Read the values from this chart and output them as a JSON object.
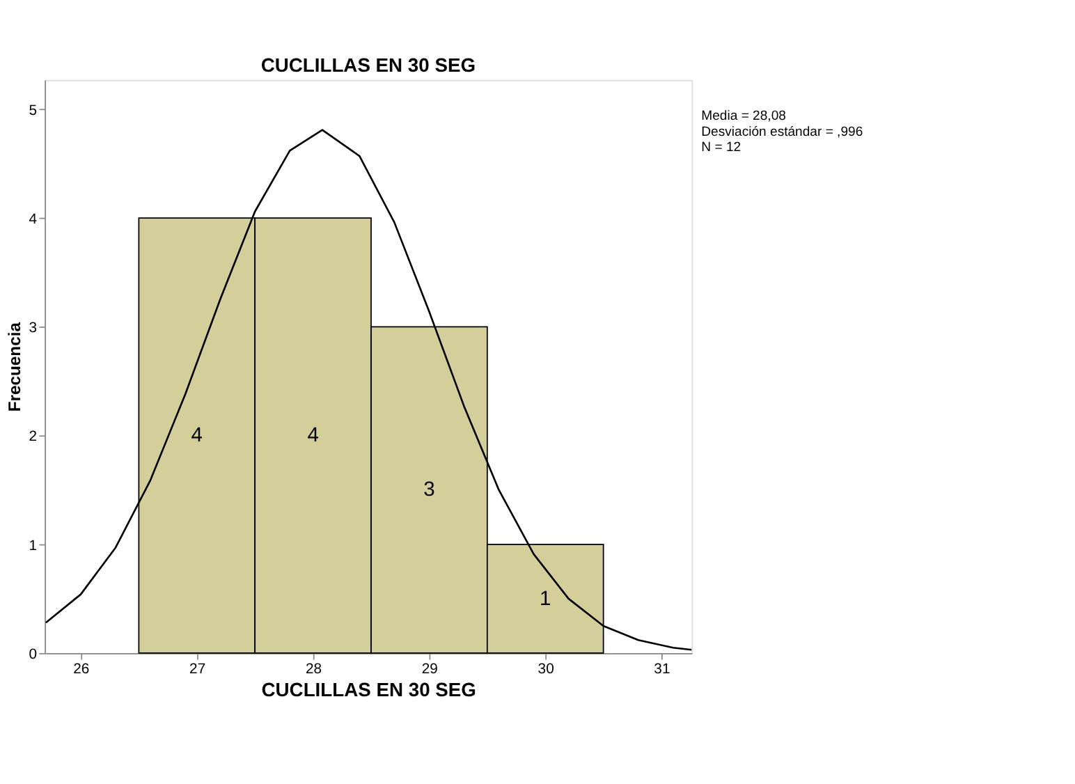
{
  "chart_data": {
    "type": "histogram",
    "title": "CUCLILLAS EN 30 SEG",
    "xlabel": "CUCLILLAS EN 30 SEG",
    "ylabel": "Frecuencia",
    "bins": [
      26.5,
      27.5,
      28.5,
      29.5,
      30.5
    ],
    "values": [
      4,
      4,
      3,
      1
    ],
    "color": "#d3ce9a",
    "value_labels": [
      "4",
      "4",
      "3",
      "1"
    ],
    "series": [
      {
        "type": "line",
        "color": "#000000",
        "x": [
          25.7,
          26.0,
          26.3,
          26.6,
          26.9,
          27.2,
          27.5,
          27.8,
          28.08,
          28.4,
          28.7,
          29.0,
          29.3,
          29.6,
          29.9,
          30.2,
          30.5,
          30.8,
          31.1,
          31.26
        ],
        "values": [
          0.28,
          0.54,
          0.97,
          1.59,
          2.38,
          3.25,
          4.06,
          4.62,
          4.81,
          4.57,
          3.96,
          3.14,
          2.27,
          1.5,
          0.91,
          0.5,
          0.25,
          0.12,
          0.05,
          0.03
        ]
      }
    ],
    "xlim": [
      25.69,
      31.26
    ],
    "xticks": [
      26,
      27,
      28,
      29,
      30,
      31
    ],
    "ylim": [
      0,
      5.27
    ],
    "yticks": [
      0,
      1,
      2,
      3,
      4,
      5
    ],
    "grid": false,
    "annotations": [
      "Media = 28,08",
      "Desviación estándar = ,996",
      "N = 12"
    ]
  }
}
